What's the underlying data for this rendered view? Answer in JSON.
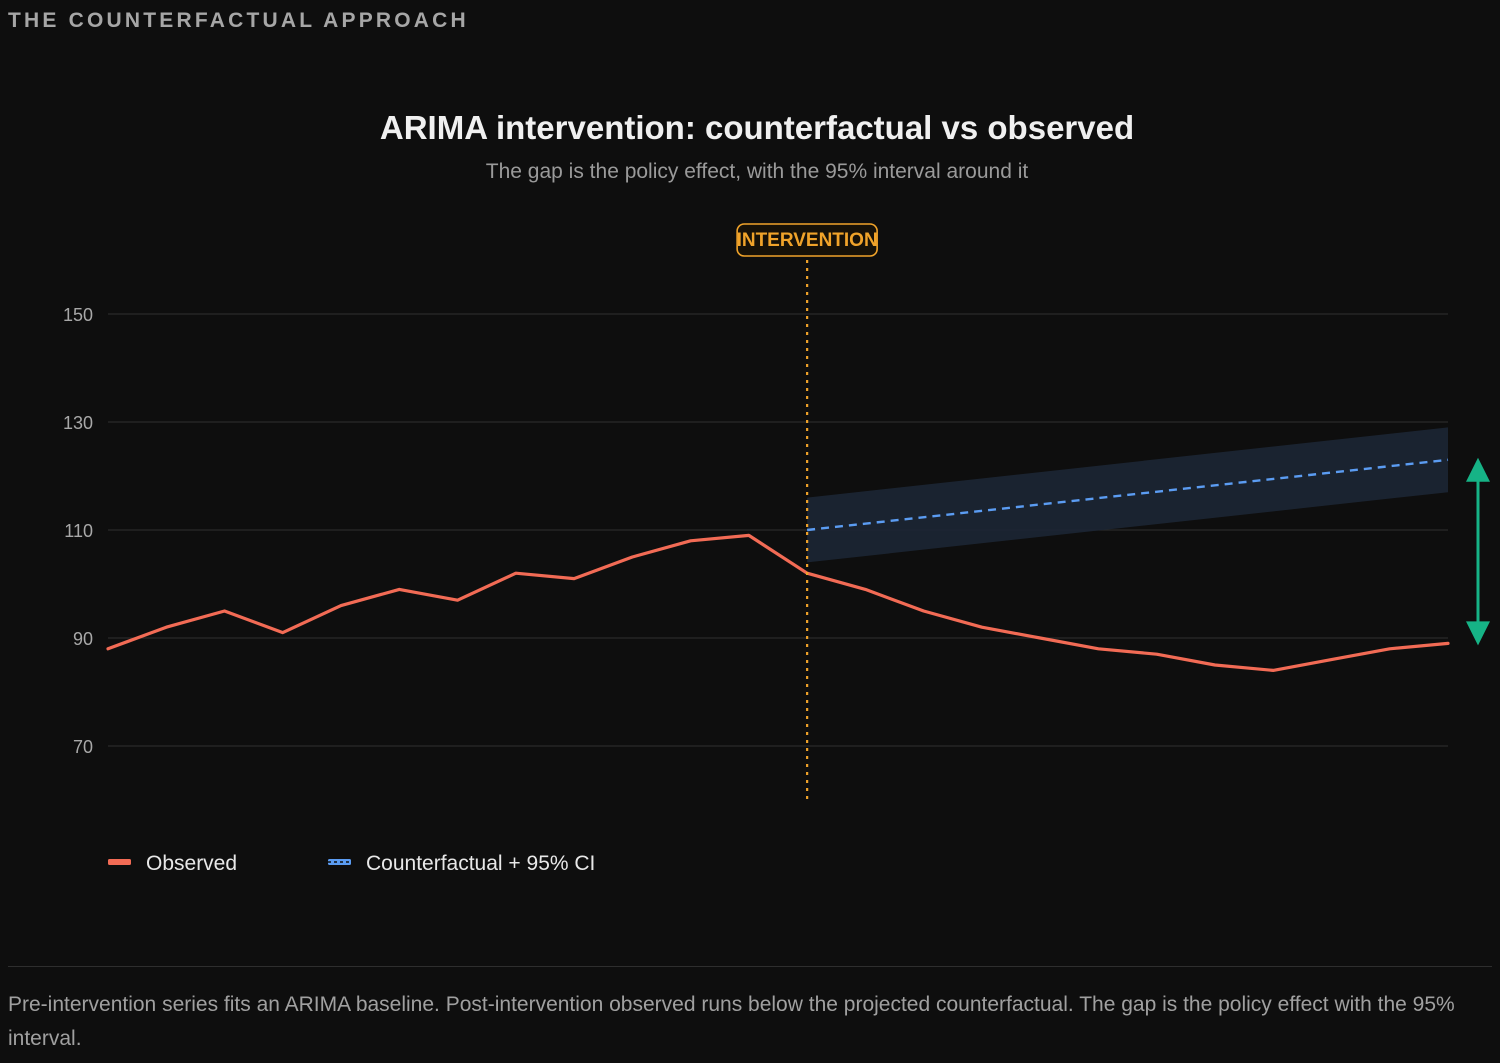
{
  "section_label": "THE COUNTERFACTUAL APPROACH",
  "caption": "Pre-intervention series fits an ARIMA baseline. Post-intervention observed runs below the projected counterfactual. The gap is the policy effect with the 95% interval.",
  "colors": {
    "background": "#0e0e0e",
    "observed": "#f26b55",
    "counterfactual": "#5b9cf2",
    "ci_band": "#1b2533",
    "intervention": "#f0a32a",
    "effect_arrow": "#16b386",
    "grid": "#2a2a2a"
  },
  "chart_data": {
    "type": "line",
    "title": "ARIMA intervention: counterfactual vs observed",
    "subtitle": "The gap is the policy effect, with the 95% interval around it",
    "x": [
      0,
      1,
      2,
      3,
      4,
      5,
      6,
      7,
      8,
      9,
      10,
      11,
      12,
      13,
      14,
      15,
      16,
      17,
      18,
      19,
      20,
      21,
      22,
      23
    ],
    "xlim": [
      0,
      23
    ],
    "ylim": [
      60,
      160
    ],
    "yticks": [
      70,
      90,
      110,
      130,
      150
    ],
    "grid": true,
    "intervention": {
      "x": 12,
      "label": "INTERVENTION"
    },
    "series": [
      {
        "name": "Observed",
        "style": "solid",
        "x": [
          0,
          1,
          2,
          3,
          4,
          5,
          6,
          7,
          8,
          9,
          10,
          11,
          12,
          13,
          14,
          15,
          16,
          17,
          18,
          19,
          20,
          21,
          22,
          23
        ],
        "values": [
          88,
          92,
          95,
          91,
          96,
          99,
          97,
          102,
          101,
          105,
          108,
          109,
          102,
          99,
          95,
          92,
          90,
          88,
          87,
          85,
          84,
          86,
          88,
          89
        ]
      },
      {
        "name": "Counterfactual + 95% CI",
        "style": "dashed",
        "x": [
          12,
          23
        ],
        "values": [
          110,
          123
        ],
        "ci_lower": [
          104,
          117
        ],
        "ci_upper": [
          116,
          129
        ]
      }
    ],
    "effect_arrow": {
      "x": 23,
      "from": 123,
      "to": 89
    },
    "legend_position": "bottom-left"
  }
}
